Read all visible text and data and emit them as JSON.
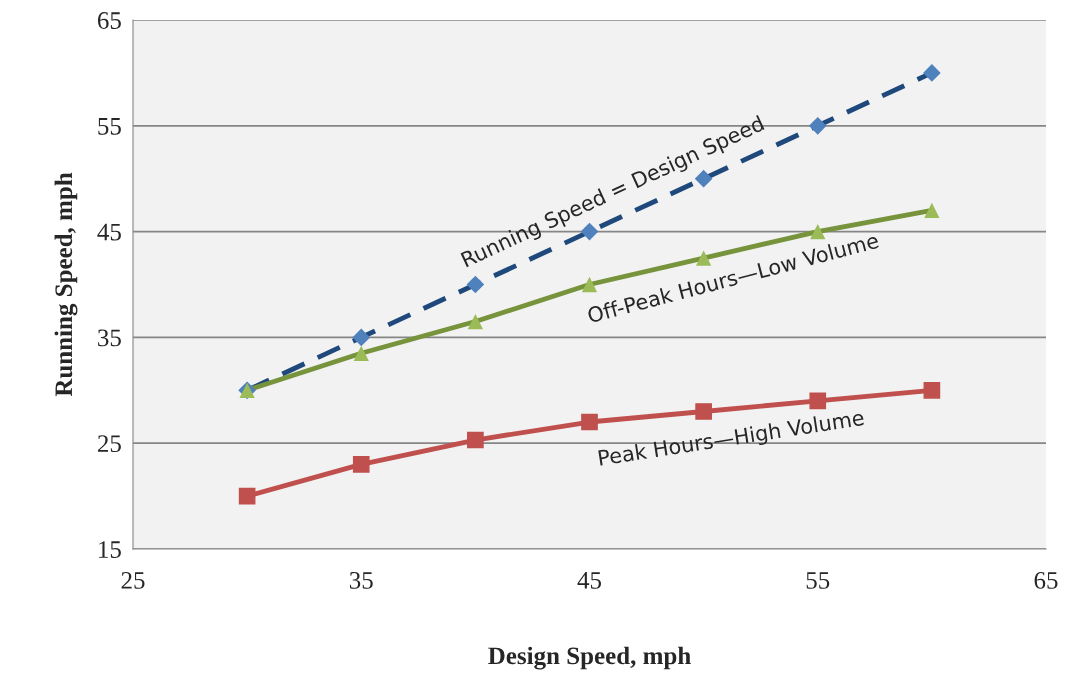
{
  "chart_data": {
    "type": "line",
    "xlabel": "Design Speed, mph",
    "ylabel": "Running Speed, mph",
    "x": [
      30,
      35,
      40,
      45,
      50,
      55,
      60
    ],
    "series": [
      {
        "color": "#1f497d",
        "line_style": "dashed",
        "marker": "none",
        "values": [
          30,
          35,
          40,
          45,
          50,
          55,
          60
        ]
      },
      {
        "type": "scatter",
        "name": "Running Speed = Design Speed",
        "color": "#4f81bd",
        "marker": "diamond",
        "values": [
          30,
          35,
          40,
          45,
          50,
          55,
          60
        ]
      },
      {
        "color": "#77933c",
        "line_style": "solid",
        "marker": "none",
        "values": [
          30,
          33.5,
          36.5,
          40,
          42.5,
          45,
          47
        ]
      },
      {
        "type": "scatter",
        "name": "Off-Peak Hours—Low Volume",
        "color": "#9bbb59",
        "marker": "triangle",
        "values": [
          30,
          33.5,
          36.5,
          40,
          42.5,
          45,
          47
        ]
      },
      {
        "name": "Peak Hours—High Volume",
        "color": "#c0504d",
        "line_style": "solid",
        "marker": "square",
        "values": [
          20,
          23,
          25.3,
          27,
          28,
          29,
          30
        ]
      }
    ],
    "xlim": [
      25,
      65
    ],
    "xticks": [
      25,
      35,
      45,
      55,
      65
    ],
    "ylim": [
      15,
      65
    ],
    "yticks": [
      15,
      25,
      35,
      45,
      55,
      65
    ],
    "grid": "y",
    "legend": false
  }
}
